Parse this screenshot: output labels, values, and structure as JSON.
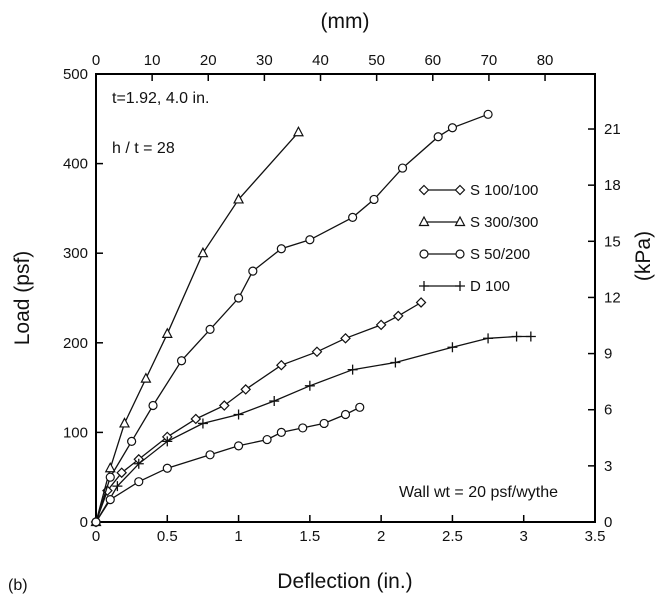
{
  "panel_label": "(b)",
  "chart_data": {
    "type": "line",
    "xlabel": "Deflection (in.)",
    "ylabel": "Load (psf)",
    "x2label": "(mm)",
    "y2label": "(kPa)",
    "xlim": [
      0,
      3.5
    ],
    "ylim": [
      0,
      500
    ],
    "x2lim": [
      0,
      88.9
    ],
    "y2lim": [
      0,
      23.94
    ],
    "x_ticks": [
      0,
      0.5,
      1,
      1.5,
      2,
      2.5,
      3,
      3.5
    ],
    "x_tick_labels": [
      "0",
      "0.5",
      "1",
      "1.5",
      "2",
      "2.5",
      "3",
      "3.5"
    ],
    "y_ticks": [
      0,
      100,
      200,
      300,
      400,
      500
    ],
    "y_tick_labels": [
      "0",
      "100",
      "200",
      "300",
      "400",
      "500"
    ],
    "x2_ticks": [
      0,
      10,
      20,
      30,
      40,
      50,
      60,
      70,
      80
    ],
    "x2_tick_labels": [
      "0",
      "10",
      "20",
      "30",
      "40",
      "50",
      "60",
      "70",
      "80"
    ],
    "y2_ticks": [
      0,
      3,
      6,
      9,
      12,
      15,
      18,
      21
    ],
    "y2_tick_labels": [
      "0",
      "3",
      "6",
      "9",
      "12",
      "15",
      "18",
      "21"
    ],
    "annotations": [
      "t=1.92, 4.0 in.",
      "h / t = 28",
      "Wall wt = 20 psf/wythe"
    ],
    "legend_position": "right",
    "series": [
      {
        "name": "S 100/100",
        "marker": "diamond",
        "x": [
          0,
          0.08,
          0.18,
          0.3,
          0.5,
          0.7,
          0.9,
          1.05,
          1.3,
          1.55,
          1.75,
          2.0,
          2.12,
          2.28
        ],
        "y": [
          0,
          35,
          55,
          70,
          95,
          115,
          130,
          148,
          175,
          190,
          205,
          220,
          230,
          245
        ]
      },
      {
        "name": "S 300/300",
        "marker": "triangle",
        "x": [
          0,
          0.1,
          0.2,
          0.35,
          0.5,
          0.75,
          1.0,
          1.42
        ],
        "y": [
          0,
          60,
          110,
          160,
          210,
          300,
          360,
          435
        ]
      },
      {
        "name": "S 50/200",
        "marker": "circle",
        "x": [
          0,
          0.1,
          0.25,
          0.4,
          0.6,
          0.8,
          1.0,
          1.1,
          1.3,
          1.5,
          1.8,
          1.95,
          2.15,
          2.4,
          2.5,
          2.75
        ],
        "y": [
          0,
          50,
          90,
          130,
          180,
          215,
          250,
          280,
          305,
          315,
          340,
          360,
          395,
          430,
          440,
          455
        ]
      },
      {
        "name": "D 100",
        "marker": "plus",
        "x": [
          0,
          0.15,
          0.3,
          0.5,
          0.75,
          1.0,
          1.25,
          1.5,
          1.8,
          2.1,
          2.5,
          2.75,
          2.95,
          3.05
        ],
        "y": [
          0,
          40,
          65,
          90,
          110,
          120,
          135,
          152,
          170,
          178,
          195,
          205,
          207,
          207
        ]
      },
      {
        "name": "Wall wt = 20 psf/wythe",
        "marker": "circle",
        "x": [
          0,
          0.1,
          0.3,
          0.5,
          0.8,
          1.0,
          1.2,
          1.3,
          1.45,
          1.6,
          1.75,
          1.85
        ],
        "y": [
          0,
          25,
          45,
          60,
          75,
          85,
          92,
          100,
          105,
          110,
          120,
          128
        ]
      }
    ]
  }
}
